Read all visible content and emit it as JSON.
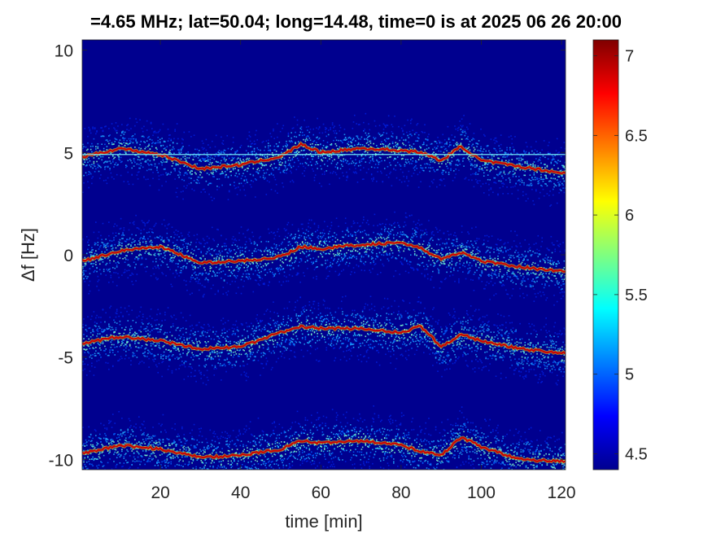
{
  "title": "=4.65 MHz;  lat=50.04; long=14.48, time=0 is at 2025 06 26 20:00",
  "chart_data": {
    "type": "heatmap",
    "title": "=4.65 MHz;  lat=50.04; long=14.48, time=0 is at 2025 06 26 20:00",
    "xlabel": "time [min]",
    "ylabel": "Δf [Hz]",
    "xlim": [
      0.5,
      121
    ],
    "ylim": [
      -10.5,
      10.5
    ],
    "xticks": [
      "20",
      "40",
      "60",
      "80",
      "100",
      "120"
    ],
    "xtick_values": [
      20,
      40,
      60,
      80,
      100,
      120
    ],
    "yticks": [
      "-10",
      "-5",
      "0",
      "5",
      "10"
    ],
    "ytick_values": [
      -10,
      -5,
      0,
      5,
      10
    ],
    "colorbar": {
      "range": [
        4.4,
        7.1
      ],
      "ticks": [
        "4.5",
        "5",
        "5.5",
        "6",
        "6.5",
        "7"
      ],
      "tick_values": [
        4.5,
        5,
        5.5,
        6,
        6.5,
        7
      ],
      "colormap": "jet"
    },
    "background_color": "#00008f",
    "reference_line": {
      "y": 4.9,
      "color": "#7fffff"
    },
    "traces": [
      {
        "offset": 4.9,
        "x": [
          1,
          10,
          20,
          30,
          40,
          50,
          55,
          60,
          70,
          80,
          85,
          90,
          95,
          100,
          110,
          120
        ],
        "y": [
          4.8,
          5.2,
          4.9,
          4.2,
          4.4,
          4.8,
          5.4,
          5.0,
          5.2,
          5.1,
          5.0,
          4.6,
          5.3,
          4.6,
          4.3,
          4.0
        ]
      },
      {
        "offset": 0.1,
        "x": [
          1,
          10,
          20,
          30,
          40,
          50,
          55,
          60,
          70,
          80,
          85,
          90,
          95,
          100,
          110,
          120
        ],
        "y": [
          -0.3,
          0.2,
          0.4,
          -0.4,
          -0.3,
          -0.1,
          0.4,
          0.3,
          0.5,
          0.6,
          0.3,
          -0.2,
          0.1,
          -0.3,
          -0.6,
          -0.8
        ]
      },
      {
        "offset": -4.6,
        "x": [
          1,
          10,
          20,
          30,
          40,
          50,
          55,
          60,
          70,
          80,
          85,
          90,
          95,
          100,
          110,
          120
        ],
        "y": [
          -4.3,
          -4.0,
          -4.2,
          -4.6,
          -4.5,
          -3.8,
          -3.5,
          -3.6,
          -3.6,
          -3.8,
          -3.5,
          -4.5,
          -3.9,
          -4.2,
          -4.6,
          -4.8
        ]
      },
      {
        "offset": -9.6,
        "x": [
          1,
          10,
          20,
          30,
          40,
          50,
          55,
          60,
          70,
          80,
          85,
          90,
          95,
          100,
          110,
          120
        ],
        "y": [
          -9.7,
          -9.3,
          -9.5,
          -9.9,
          -9.8,
          -9.5,
          -9.1,
          -9.2,
          -9.1,
          -9.3,
          -9.6,
          -9.8,
          -8.9,
          -9.4,
          -10.0,
          -10.1
        ]
      }
    ]
  }
}
